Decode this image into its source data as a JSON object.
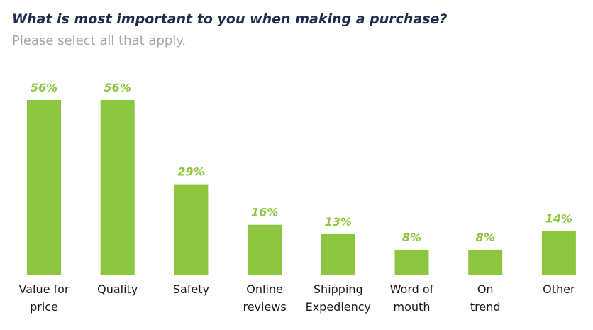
{
  "title": "What is most important to you when making a purchase?",
  "subtitle": "Please select all that apply.",
  "colors": {
    "bar": "#8cc63f",
    "value_label": "#8cc63f",
    "title": "#1f2d4a",
    "subtitle": "#a5a5a5",
    "category_label": "#1a1a1a"
  },
  "chart_data": {
    "type": "bar",
    "categories": [
      [
        "Value for",
        "price"
      ],
      [
        "Quality"
      ],
      [
        "Safety"
      ],
      [
        "Online",
        "reviews"
      ],
      [
        "Shipping",
        "Expediency"
      ],
      [
        "Word of",
        "mouth"
      ],
      [
        "On",
        "trend"
      ],
      [
        "Other"
      ]
    ],
    "values": [
      56,
      56,
      29,
      16,
      13,
      8,
      8,
      14
    ],
    "value_labels": [
      "56%",
      "56%",
      "29%",
      "16%",
      "13%",
      "8%",
      "8%",
      "14%"
    ],
    "unit": "%",
    "ylim": [
      0,
      56
    ],
    "grid": false,
    "legend": "none"
  }
}
